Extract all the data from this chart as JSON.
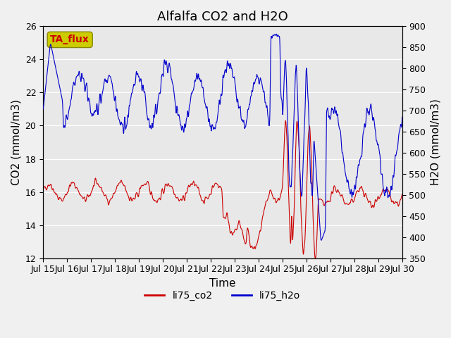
{
  "title": "Alfalfa CO2 and H2O",
  "xlabel": "Time",
  "ylabel_left": "CO2 (mmol/m3)",
  "ylabel_right": "H2O (mmol/m3)",
  "ylim_left": [
    12,
    26
  ],
  "ylim_right": [
    350,
    900
  ],
  "yticks_left": [
    12,
    14,
    16,
    18,
    20,
    22,
    24,
    26
  ],
  "yticks_right": [
    350,
    400,
    450,
    500,
    550,
    600,
    650,
    700,
    750,
    800,
    850,
    900
  ],
  "xtick_labels": [
    "Jul 15",
    "Jul 16",
    "Jul 17",
    "Jul 18",
    "Jul 19",
    "Jul 20",
    "Jul 21",
    "Jul 22",
    "Jul 23",
    "Jul 24",
    "Jul 25",
    "Jul 26",
    "Jul 27",
    "Jul 28",
    "Jul 29",
    "Jul 30"
  ],
  "legend_labels": [
    "li75_co2",
    "li75_h2o"
  ],
  "legend_colors": [
    "#cc0000",
    "#0000cc"
  ],
  "annotation_text": "TA_flux",
  "annotation_box_color": "#cccc00",
  "annotation_text_color": "#cc0000",
  "line_color_co2": "#cc0000",
  "line_color_h2o": "#0000cc",
  "background_color": "#e8e8e8",
  "grid_color": "#ffffff",
  "title_fontsize": 13,
  "axis_label_fontsize": 11,
  "tick_fontsize": 9
}
